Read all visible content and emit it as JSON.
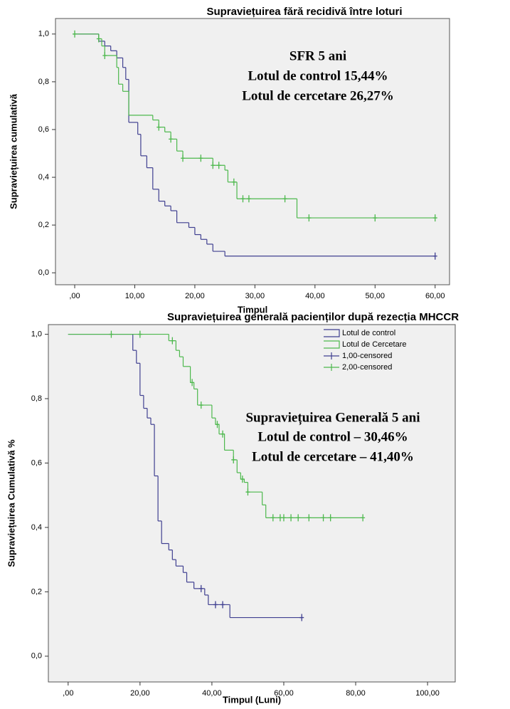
{
  "chart_data": [
    {
      "type": "step",
      "title": "Supraviețuirea fără recidivă între loturi",
      "x_label": "Timpul",
      "y_label": "Supraviețuirea cumulativă",
      "annotations": [
        "SFR 5 ani",
        "Lotul de control 15,44%",
        "Lotul de cercetare 26,27%"
      ],
      "xlim": [
        -3.2,
        62.4
      ],
      "ylim": [
        -0.05,
        1.065
      ],
      "xticks": [
        {
          "value": 0,
          "label": ",00"
        },
        {
          "value": 10,
          "label": "10,00"
        },
        {
          "value": 20,
          "label": "20,00"
        },
        {
          "value": 30,
          "label": "30,00"
        },
        {
          "value": 40,
          "label": "40,00"
        },
        {
          "value": 50,
          "label": "50,00"
        },
        {
          "value": 60,
          "label": "60,00"
        }
      ],
      "yticks": [
        {
          "value": 0,
          "label": "0,0"
        },
        {
          "value": 0.2,
          "label": "0,2"
        },
        {
          "value": 0.4,
          "label": "0,4"
        },
        {
          "value": 0.6,
          "label": "0,6"
        },
        {
          "value": 0.8,
          "label": "0,8"
        },
        {
          "value": 1,
          "label": "1,0"
        }
      ],
      "series": [
        {
          "color": "#3f3f90",
          "marker": "line",
          "x": [
            0,
            4,
            5,
            6,
            7,
            8,
            8.5,
            9,
            10.5,
            11,
            12,
            13,
            14,
            15,
            16,
            17,
            19,
            20,
            21,
            22,
            23,
            25,
            60
          ],
          "values": [
            1,
            0.97,
            0.95,
            0.93,
            0.9,
            0.86,
            0.81,
            0.63,
            0.58,
            0.49,
            0.44,
            0.35,
            0.3,
            0.28,
            0.26,
            0.21,
            0.19,
            0.16,
            0.14,
            0.12,
            0.09,
            0.07,
            0.07
          ]
        },
        {
          "color": "#4cb84c",
          "marker": "line",
          "x": [
            0,
            4,
            4.5,
            5,
            7,
            7.3,
            8,
            9,
            13,
            14,
            15,
            16,
            17,
            18,
            23,
            25,
            25.5,
            27,
            37,
            60
          ],
          "values": [
            1,
            0.98,
            0.95,
            0.91,
            0.86,
            0.79,
            0.76,
            0.66,
            0.64,
            0.61,
            0.59,
            0.56,
            0.51,
            0.48,
            0.45,
            0.43,
            0.38,
            0.31,
            0.23,
            0.23
          ]
        },
        {
          "color": "#3f3f90",
          "marker": "+",
          "x": [
            60
          ],
          "values": [
            0.07
          ]
        },
        {
          "color": "#4cb84c",
          "marker": "+",
          "x": [
            0,
            4,
            5,
            14,
            16,
            18,
            21,
            23,
            24,
            26.5,
            28,
            29,
            35,
            39,
            50,
            60
          ],
          "values": [
            1,
            0.98,
            0.91,
            0.61,
            0.56,
            0.48,
            0.48,
            0.45,
            0.45,
            0.38,
            0.31,
            0.31,
            0.31,
            0.23,
            0.23,
            0.23
          ]
        }
      ]
    },
    {
      "type": "step",
      "title": "Supraviețuirea generală pacienților după rezecția MHCCR",
      "x_label": "Timpul (Luni)",
      "y_label": "Supraviețuirea Cumulativă %",
      "annotations": [
        "Supraviețuirea Generală 5 ani",
        "Lotul de control – 30,46%",
        "Lotul de cercetare – 41,40%"
      ],
      "xlim": [
        -5.5,
        107.7
      ],
      "ylim": [
        -0.08,
        1.03
      ],
      "legend": "upper right",
      "xticks": [
        {
          "value": 0,
          "label": ",00"
        },
        {
          "value": 20,
          "label": "20,00"
        },
        {
          "value": 40,
          "label": "40,00"
        },
        {
          "value": 60,
          "label": "60,00"
        },
        {
          "value": 80,
          "label": "80,00"
        },
        {
          "value": 100,
          "label": "100,00"
        }
      ],
      "yticks": [
        {
          "value": 0,
          "label": "0,0"
        },
        {
          "value": 0.2,
          "label": "0,2"
        },
        {
          "value": 0.4,
          "label": "0,4"
        },
        {
          "value": 0.6,
          "label": "0,6"
        },
        {
          "value": 0.8,
          "label": "0,8"
        },
        {
          "value": 1,
          "label": "1,0"
        }
      ],
      "series": [
        {
          "name": "Lotul de control",
          "color": "#3f3f90",
          "marker": "line",
          "x": [
            0,
            18,
            19,
            20,
            21,
            22,
            23,
            24,
            25,
            26,
            28,
            29,
            30,
            32,
            33,
            35,
            38,
            39,
            45,
            65
          ],
          "values": [
            1,
            0.95,
            0.91,
            0.81,
            0.77,
            0.74,
            0.72,
            0.56,
            0.42,
            0.35,
            0.33,
            0.3,
            0.28,
            0.26,
            0.23,
            0.21,
            0.19,
            0.16,
            0.12,
            0.12
          ]
        },
        {
          "name": "Lotul de Cercetare",
          "color": "#4cb84c",
          "marker": "line",
          "x": [
            0,
            28,
            30,
            31,
            32,
            34,
            35,
            36,
            40,
            41,
            42,
            43.5,
            46,
            47,
            48,
            49,
            50,
            54,
            55,
            82
          ],
          "values": [
            1,
            0.98,
            0.95,
            0.93,
            0.9,
            0.85,
            0.83,
            0.78,
            0.74,
            0.72,
            0.69,
            0.64,
            0.61,
            0.57,
            0.55,
            0.54,
            0.51,
            0.47,
            0.43,
            0.43
          ]
        },
        {
          "name": "1,00-censored",
          "color": "#3f3f90",
          "marker": "+",
          "x": [
            37,
            41,
            43,
            65
          ],
          "values": [
            0.21,
            0.16,
            0.16,
            0.12
          ]
        },
        {
          "name": "2,00-censored",
          "color": "#4cb84c",
          "marker": "+",
          "x": [
            12,
            20,
            29,
            34.5,
            37,
            41.5,
            43,
            46,
            48.5,
            50,
            57,
            59,
            60,
            62,
            64,
            67,
            71,
            73,
            82
          ],
          "values": [
            1,
            1,
            0.98,
            0.85,
            0.78,
            0.72,
            0.69,
            0.61,
            0.55,
            0.51,
            0.43,
            0.43,
            0.43,
            0.43,
            0.43,
            0.43,
            0.43,
            0.43,
            0.43
          ]
        }
      ]
    }
  ]
}
